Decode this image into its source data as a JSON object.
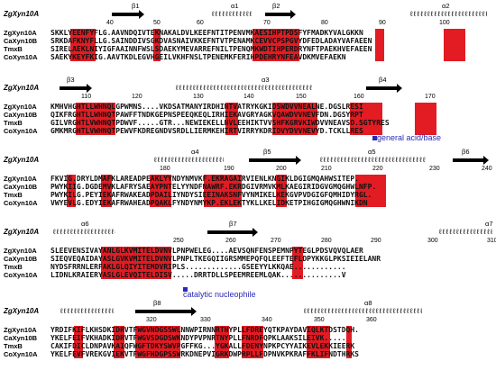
{
  "reference_label": "ZgXyn10A",
  "sequence_names": [
    "ZgXyn10A",
    "CaXyn10B",
    "TmxB",
    "CoXyn10A"
  ],
  "annotations": {
    "general_acid_base": "general acid/base",
    "catalytic_nucleophile": "catalytic nucleophile"
  },
  "blocks": [
    {
      "numbers": [
        "40",
        "50",
        "60",
        "70",
        "80",
        "90",
        "100"
      ],
      "ss_labels": [
        "β1",
        "α1",
        "β2",
        "α2"
      ],
      "rows": [
        "SKKLYEENFYFLG.AAVNDQIVTEKNAKALDVLKEEFNTITPENVMKAESIHPTPDSFYFMADKYVALGKKN",
        "SRKDAFKNYFLLG.SAINDDIVSGKDVASNAIVKKEFNTVTPENAMKCEVVCPSPGVYDFEDLADAYVAFAEEN",
        "SIRELAEKLNIYIGFAAINNFWSLSDAEKYMEVARREFNILTPENQMKWDTIHPERDRYNFTPAEKHVEFAEEN",
        "SAEKYKEYFKIG.AAVTKDLEGVHGEILVKHFNSLTPENEMKFERIHPDEHRYNFEAVDKMVEFAEKN"
      ]
    },
    {
      "numbers": [
        "110",
        "120",
        "130",
        "140",
        "150",
        "160",
        "170"
      ],
      "ss_labels": [
        "β3",
        "α3",
        "β4"
      ],
      "rows": [
        "KMHVHGHTLLWHNQLGPWMNS....VKDSATMANYIRDHINTVATRYKGKIDSWDVVNEALNE.DGSLRESI",
        "QIKFRGHTLLWHNQTPAWFFTNDKGEPNSPEEQKEQLIRHIEKAVGRYAGKVQAWDVVNEVFDN.DGSYRPT",
        "GILVRGHTLVWHNQTPDWVF.....GTR...NEWIEKELLNVLEEHIKTVVSHFKGRVKIWDVVNEAVSD.SGTYRES",
        "GMKMRGHTLVWHNQTPEWVFKDREGNDVSRDLLIERMKEHIRTVIRRYKDRIDVYDVVNEVYD.TCKLLRES"
      ]
    },
    {
      "numbers": [
        "180",
        "190",
        "200",
        "210",
        "220",
        "230",
        "240"
      ],
      "ss_labels": [
        "α4",
        "β5",
        "α5",
        "β6"
      ],
      "rows": [
        "FKVIG.DRYLDMAFKLAREADPEAKLYYNDYNMVKF.EKRAGAIRVIENLKNGIKLDGIGMQAHWSITEP.",
        "PWYKIIG.DGDEMVKLAFRYSAEAYPNTELYYNDFNAWRF.EKRDGIVRMVKMLKAEGIRIDGVGMQGHWLNFP.",
        "PWYKILG.PEYIEKAFRWAKEADPDAILIYNDYSIEEINAKSNFVYNMIKELKEKGVPVDGIGFQMHIDYRGL.",
        "VWYEVLG.EDYIEKAFRWAHEADPQAKLFYNDYNMYKP.EKLEKTYKLLKELIDKETPIHGIGMQGHWNIKDN"
      ]
    },
    {
      "numbers": [
        "250",
        "260",
        "270",
        "280",
        "290",
        "300",
        "310"
      ],
      "ss_labels": [
        "α6",
        "β7",
        "α7"
      ],
      "rows": [
        "SLEEVENSIVAYANLGLKVMITELDVNVLPNPWELEG....AEVSQNFENSPEMNPYTEGLPDSVQVQLAER",
        "SIEQVEQAIDAYASLGVKVMITELDVNVLPNPLTKEGQIIGRSMMEPQFQLEEFTEFLDPYKKGLPKSIEIELANR",
        "NYDSFRRNLERFAKLGLQIYITEMDVRIPLS.............GSEEYYLKKQAE............",
        "LIDNLKRAIERYASLGLEVQITELDISV.....DRRTDLLSPEEMREEMLQAK..............V"
      ]
    },
    {
      "numbers": [
        "320",
        "330",
        "340",
        "350",
        "360"
      ],
      "ss_labels": [
        "β8",
        "α8"
      ],
      "rows": [
        "YRDIFKIFLKHSDKIDRVTFWGVNDGSSWLNNWPIRNNRTNYPLLFDREYQTKPAYDAVIQLKTDSTDQH.",
        "YKELFEIFVKHADKIDRVTFWGVSDGDSWKNDYPVPNRTNYPLLFNRDFQPKLAAKSILEIVK.....",
        "CAKIFDICLDNPAVKAIQFWGFTDKYSWVPGFFKG...YGKALLFDENYNPKPCYYAIKEVLEKKIEERK",
        "YKELFEVFVREKGVIEKVTFWGFHDGPSSWRKDNEPVIGRKDWPRPLLFDPNVKPKRAFFKLIFNDTHRKS"
      ]
    }
  ]
}
